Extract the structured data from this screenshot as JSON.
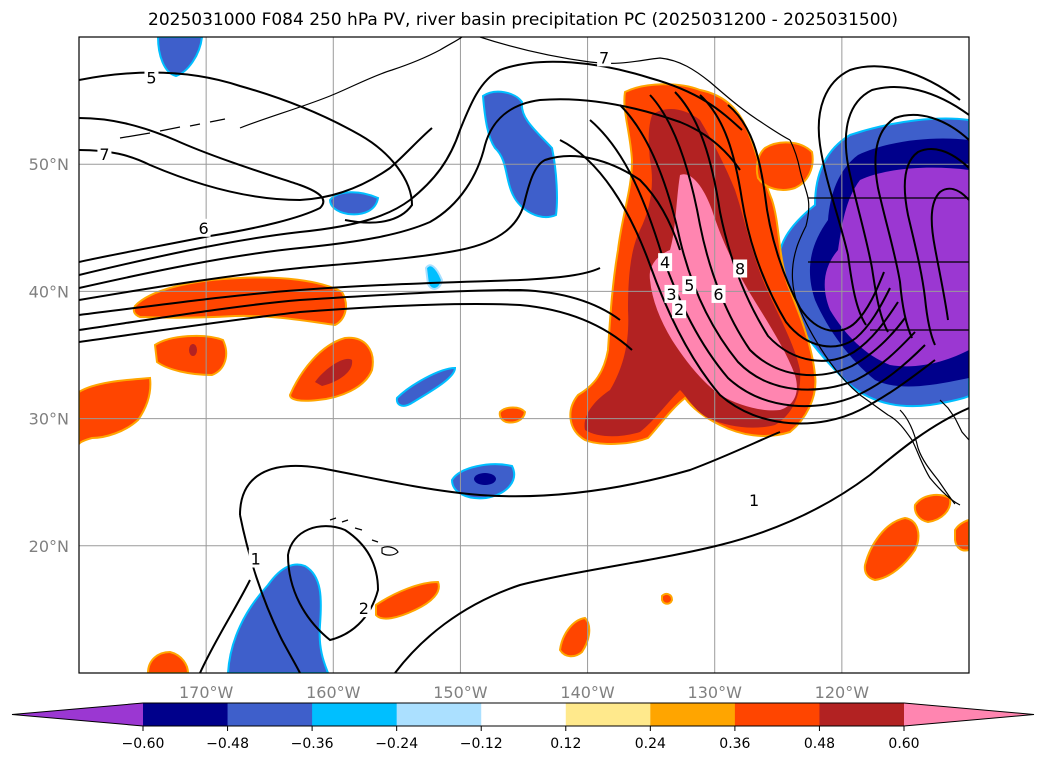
{
  "chart_data": {
    "type": "heatmap",
    "title": "2025031000 F084 250 hPa PV, river basin precipitation PC (2025031200 - 2025031500)",
    "map_extent": {
      "lon": [
        -180,
        -110
      ],
      "lat": [
        10,
        60
      ]
    },
    "lat_ticks": [
      {
        "value": 50,
        "label": "50°N"
      },
      {
        "value": 40,
        "label": "40°N"
      },
      {
        "value": 30,
        "label": "30°N"
      },
      {
        "value": 20,
        "label": "20°N"
      }
    ],
    "lon_ticks": [
      {
        "value": -170,
        "label": "170°W"
      },
      {
        "value": -160,
        "label": "160°W"
      },
      {
        "value": -150,
        "label": "150°W"
      },
      {
        "value": -140,
        "label": "140°W"
      },
      {
        "value": -130,
        "label": "130°W"
      },
      {
        "value": -120,
        "label": "120°W"
      }
    ],
    "grid": true,
    "colorbar": {
      "orientation": "horizontal",
      "placement": "bottom",
      "extend": "both",
      "bins": [
        {
          "color": "#9B37D2"
        },
        {
          "color": "#00008B"
        },
        {
          "color": "#3E5FCB"
        },
        {
          "color": "#00BFFF"
        },
        {
          "color": "#ABE0FF"
        },
        {
          "color": "#FFFFFF"
        },
        {
          "color": "#FFE98C"
        },
        {
          "color": "#FFA500"
        },
        {
          "color": "#FF4500"
        },
        {
          "color": "#B22222"
        },
        {
          "color": "#FF85B0"
        }
      ],
      "tick_labels": [
        "−0.60",
        "−0.48",
        "−0.36",
        "−0.24",
        "−0.12",
        "0.12",
        "0.24",
        "0.36",
        "0.48",
        "0.60"
      ]
    },
    "contour_field": "250 hPa PV",
    "contour_levels_shown": [
      1,
      2,
      3,
      4,
      5,
      6,
      7,
      8
    ],
    "contour_labels": [
      {
        "text": "5",
        "lon": -174.3,
        "lat": 56.8
      },
      {
        "text": "7",
        "lon": -178.0,
        "lat": 50.8
      },
      {
        "text": "6",
        "lon": -170.2,
        "lat": 45.0
      },
      {
        "text": "7",
        "lon": -138.7,
        "lat": 58.4
      },
      {
        "text": "4",
        "lon": -133.9,
        "lat": 42.3
      },
      {
        "text": "3",
        "lon": -133.4,
        "lat": 39.8
      },
      {
        "text": "2",
        "lon": -132.8,
        "lat": 38.6
      },
      {
        "text": "5",
        "lon": -132.0,
        "lat": 40.5
      },
      {
        "text": "6",
        "lon": -129.7,
        "lat": 39.8
      },
      {
        "text": "8",
        "lon": -128.0,
        "lat": 41.8
      },
      {
        "text": "1",
        "lon": -126.9,
        "lat": 23.6
      },
      {
        "text": "1",
        "lon": -166.1,
        "lat": 19.0
      },
      {
        "text": "2",
        "lon": -157.6,
        "lat": 15.1
      }
    ]
  }
}
